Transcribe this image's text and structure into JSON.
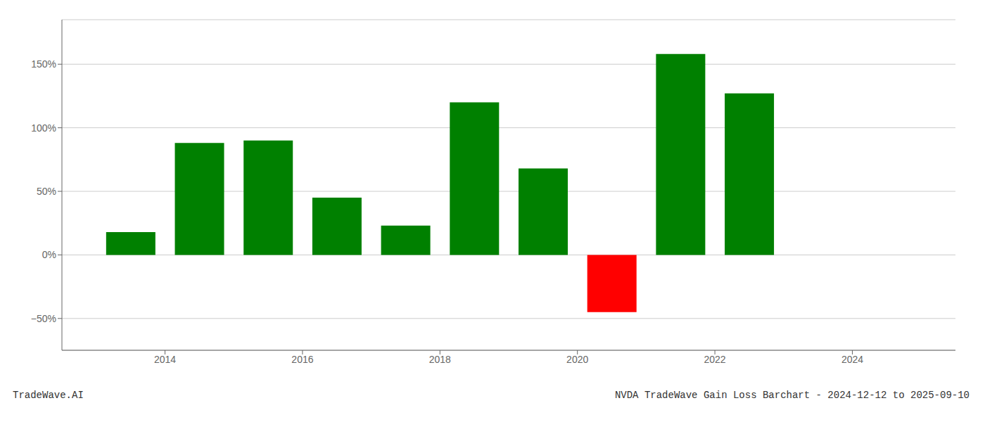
{
  "chart_data": {
    "type": "bar",
    "title": "NVDA TradeWave Gain Loss Barchart - 2024-12-12 to 2025-09-10",
    "annotations": [
      "TradeWave.AI"
    ],
    "x": [
      2013.5,
      2014.5,
      2015.5,
      2016.5,
      2017.5,
      2018.5,
      2019.5,
      2020.5,
      2021.5,
      2022.5
    ],
    "values": [
      18,
      88,
      90,
      45,
      23,
      120,
      68,
      -45,
      158,
      127
    ],
    "colors": [
      "#008000",
      "#008000",
      "#008000",
      "#008000",
      "#008000",
      "#008000",
      "#008000",
      "#ff0000",
      "#008000",
      "#008000"
    ],
    "xlim": [
      2012.5,
      2025.5
    ],
    "xticks": [
      2014,
      2016,
      2018,
      2020,
      2022,
      2024
    ],
    "ylim": [
      -75,
      185
    ],
    "yticks": [
      {
        "value": -50,
        "label": "−50%"
      },
      {
        "value": 0,
        "label": "0%"
      },
      {
        "value": 50,
        "label": "50%"
      },
      {
        "value": 100,
        "label": "100%"
      },
      {
        "value": 150,
        "label": "150%"
      }
    ],
    "grid": true
  }
}
